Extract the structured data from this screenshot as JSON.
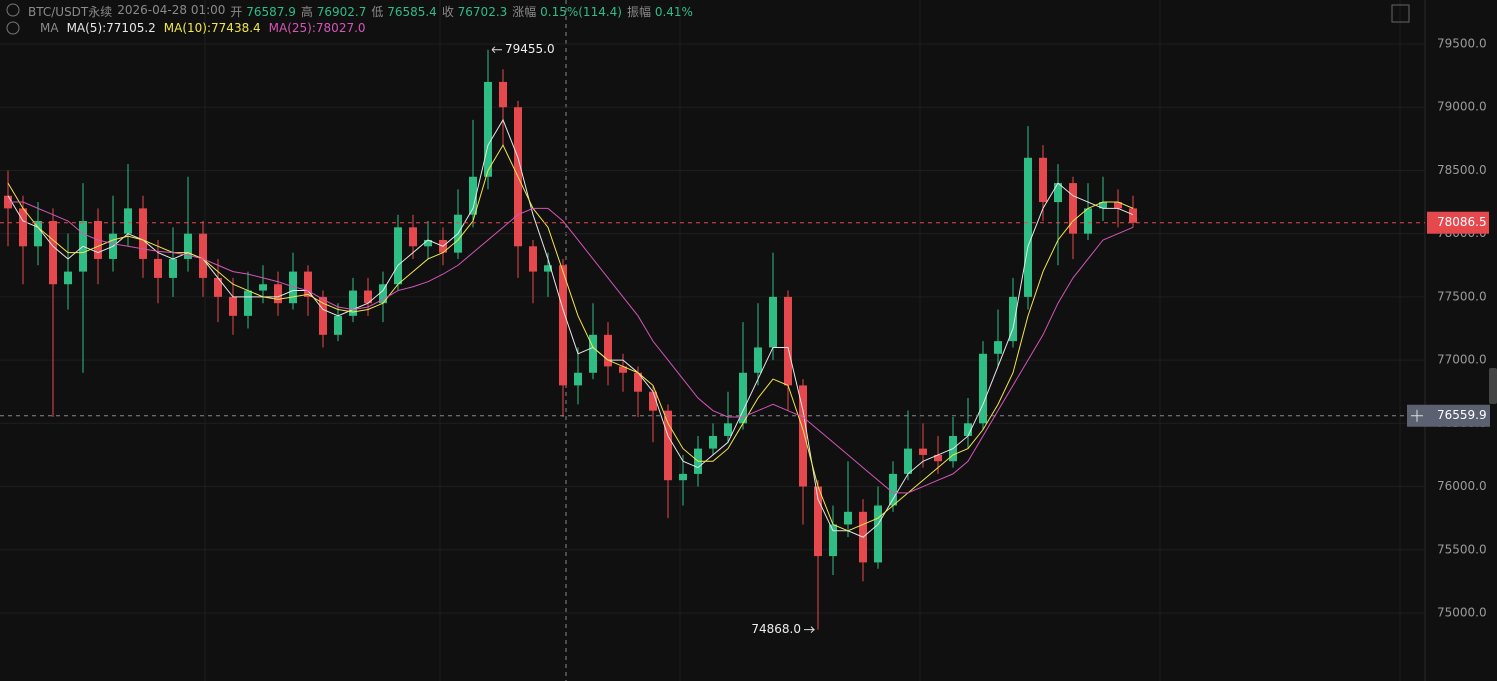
{
  "header": {
    "symbol": "BTC/USDT永续",
    "time": "2026-04-28 01:00",
    "open_label": "开",
    "open": "76587.9",
    "high_label": "高",
    "high": "76902.7",
    "low_label": "低",
    "low": "76585.4",
    "close_label": "收",
    "close": "76702.3",
    "change_label": "涨幅",
    "change": "0.15%(114.4)",
    "amplitude_label": "振幅",
    "amplitude": "0.41%",
    "indicator": "MA"
  },
  "chart_data": {
    "type": "candlestick",
    "up_color": "#2ebd85",
    "down_color": "#e5484d",
    "open": [
      78300,
      78200,
      77900,
      78100,
      77600,
      77700,
      78100,
      77800,
      78000,
      78200,
      77800,
      77650,
      77800,
      78000,
      77650,
      77500,
      77350,
      77550,
      77600,
      77450,
      77700,
      77500,
      77200,
      77350,
      77550,
      77450,
      77600,
      78050,
      77900,
      77950,
      77850,
      78150,
      78450,
      79200,
      79000,
      77900,
      77700,
      77750,
      76800,
      76900,
      77200,
      76950,
      76900,
      76750,
      76600,
      76050,
      76100,
      76300,
      76400,
      76500,
      76900,
      77100,
      77500,
      76800,
      76000,
      75450,
      75700,
      75800,
      75400,
      75850,
      76100,
      76300,
      76250,
      76200,
      76400,
      76500,
      77050,
      77150,
      77500,
      78600,
      78250,
      78400,
      78000,
      78200,
      78250,
      78200
    ],
    "high": [
      78500,
      78300,
      78250,
      78200,
      78000,
      78400,
      78200,
      78300,
      78550,
      78300,
      77950,
      78050,
      78450,
      78100,
      77800,
      77650,
      77700,
      77750,
      77700,
      77850,
      77750,
      77550,
      77450,
      77650,
      77650,
      77700,
      78150,
      78150,
      78100,
      78050,
      78350,
      78900,
      79455,
      79300,
      79050,
      77950,
      77850,
      77800,
      77100,
      77450,
      77300,
      77050,
      76950,
      76800,
      76650,
      76250,
      76400,
      76500,
      76750,
      77300,
      77450,
      77850,
      77550,
      76850,
      76050,
      75850,
      76200,
      75900,
      76000,
      76200,
      76600,
      76500,
      76400,
      76550,
      76700,
      77150,
      77400,
      77650,
      78850,
      78700,
      78550,
      78450,
      78400,
      78450,
      78350,
      78300
    ],
    "low": [
      77900,
      77600,
      77750,
      76550,
      77400,
      76900,
      77600,
      77700,
      77900,
      77650,
      77450,
      77500,
      77700,
      77500,
      77300,
      77200,
      77250,
      77450,
      77350,
      77400,
      77350,
      77100,
      77150,
      77300,
      77350,
      77300,
      77550,
      77800,
      77800,
      77750,
      77800,
      78050,
      78350,
      78700,
      77650,
      77450,
      77500,
      76550,
      76650,
      76850,
      76800,
      76750,
      76550,
      76350,
      75750,
      75850,
      76000,
      76250,
      76350,
      76450,
      76800,
      77000,
      76600,
      75700,
      74868,
      75300,
      75600,
      75250,
      75350,
      75800,
      76050,
      76150,
      76100,
      76150,
      76300,
      76450,
      76950,
      77100,
      77400,
      78100,
      77750,
      77800,
      77950,
      78100,
      78050,
      78050
    ],
    "close": [
      78200,
      77900,
      78100,
      77600,
      77700,
      78100,
      77800,
      78000,
      78200,
      77800,
      77650,
      77800,
      78000,
      77650,
      77500,
      77350,
      77550,
      77600,
      77450,
      77700,
      77500,
      77200,
      77350,
      77550,
      77450,
      77600,
      78050,
      77900,
      77950,
      77850,
      78150,
      78450,
      79200,
      79000,
      77900,
      77700,
      77750,
      76800,
      76900,
      77200,
      76950,
      76900,
      76750,
      76600,
      76050,
      76100,
      76300,
      76400,
      76500,
      76900,
      77100,
      77500,
      76800,
      76000,
      75450,
      75700,
      75800,
      75400,
      75850,
      76100,
      76300,
      76250,
      76200,
      76400,
      76500,
      77050,
      77150,
      77500,
      78600,
      78250,
      78400,
      78000,
      78200,
      78250,
      78200,
      78086.5
    ],
    "series": [
      {
        "name": "MA(5):77105.2",
        "color": "#e6e6e6",
        "values": [
          78300,
          78100,
          78050,
          77900,
          77800,
          77900,
          77850,
          77900,
          78000,
          77950,
          77850,
          77800,
          77850,
          77800,
          77650,
          77500,
          77500,
          77500,
          77500,
          77550,
          77550,
          77400,
          77350,
          77400,
          77450,
          77550,
          77750,
          77850,
          77950,
          77900,
          78000,
          78200,
          78700,
          78900,
          78600,
          78150,
          77800,
          77400,
          77050,
          77100,
          77000,
          77000,
          76900,
          76750,
          76400,
          76200,
          76150,
          76250,
          76350,
          76600,
          76850,
          77100,
          77100,
          76600,
          75900,
          75650,
          75650,
          75600,
          75700,
          75900,
          76100,
          76200,
          76250,
          76300,
          76400,
          76650,
          76950,
          77250,
          77900,
          78200,
          78400,
          78300,
          78250,
          78200,
          78200,
          78150
        ]
      },
      {
        "name": "MA(10):77438.4",
        "color": "#f2e64a",
        "values": [
          78400,
          78200,
          78050,
          77950,
          77850,
          77850,
          77900,
          77950,
          77980,
          77950,
          77900,
          77850,
          77850,
          77800,
          77700,
          77600,
          77550,
          77500,
          77480,
          77500,
          77520,
          77450,
          77400,
          77380,
          77400,
          77450,
          77600,
          77700,
          77800,
          77850,
          77950,
          78100,
          78500,
          78700,
          78450,
          78200,
          78050,
          77700,
          77350,
          77100,
          77000,
          76950,
          76900,
          76800,
          76500,
          76300,
          76200,
          76200,
          76300,
          76500,
          76700,
          76850,
          76800,
          76450,
          76000,
          75700,
          75650,
          75700,
          75750,
          75850,
          75950,
          76050,
          76150,
          76250,
          76300,
          76450,
          76650,
          76900,
          77350,
          77700,
          77950,
          78100,
          78200,
          78250,
          78250,
          78200
        ]
      },
      {
        "name": "MA(25):78027.0",
        "color": "#d455b8",
        "values": [
          78250,
          78250,
          78200,
          78150,
          78100,
          78000,
          77950,
          77920,
          77900,
          77880,
          77860,
          77850,
          77830,
          77800,
          77750,
          77700,
          77680,
          77650,
          77620,
          77580,
          77550,
          77480,
          77420,
          77400,
          77420,
          77480,
          77550,
          77580,
          77620,
          77680,
          77750,
          77850,
          77950,
          78050,
          78150,
          78200,
          78200,
          78100,
          77950,
          77800,
          77650,
          77500,
          77350,
          77150,
          77000,
          76850,
          76700,
          76600,
          76550,
          76550,
          76600,
          76650,
          76600,
          76550,
          76450,
          76350,
          76250,
          76150,
          76050,
          75950,
          75950,
          76000,
          76050,
          76100,
          76200,
          76400,
          76600,
          76800,
          77000,
          77200,
          77450,
          77650,
          77800,
          77950,
          78000,
          78050
        ]
      }
    ],
    "ylim": [
      74462,
      79848
    ],
    "yticks": [
      {
        "value": 75000,
        "label": "75000.0"
      },
      {
        "value": 75500,
        "label": "75500.0"
      },
      {
        "value": 76000,
        "label": "76000.0"
      },
      {
        "value": 76500,
        "label": "76500.0"
      },
      {
        "value": 77000,
        "label": "77000.0"
      },
      {
        "value": 77500,
        "label": "77500.0"
      },
      {
        "value": 78000,
        "label": "78000.0"
      },
      {
        "value": 78500,
        "label": "78500.0"
      },
      {
        "value": 79000,
        "label": "79000.0"
      },
      {
        "value": 79500,
        "label": "79500.0"
      }
    ],
    "grid": true,
    "max_label": "79455.0",
    "min_label": "74868.0",
    "last_price": {
      "value": 78086.5,
      "label": "78086.5"
    },
    "crosshair_price": {
      "value": 76559.9,
      "label": "76559.9"
    }
  }
}
